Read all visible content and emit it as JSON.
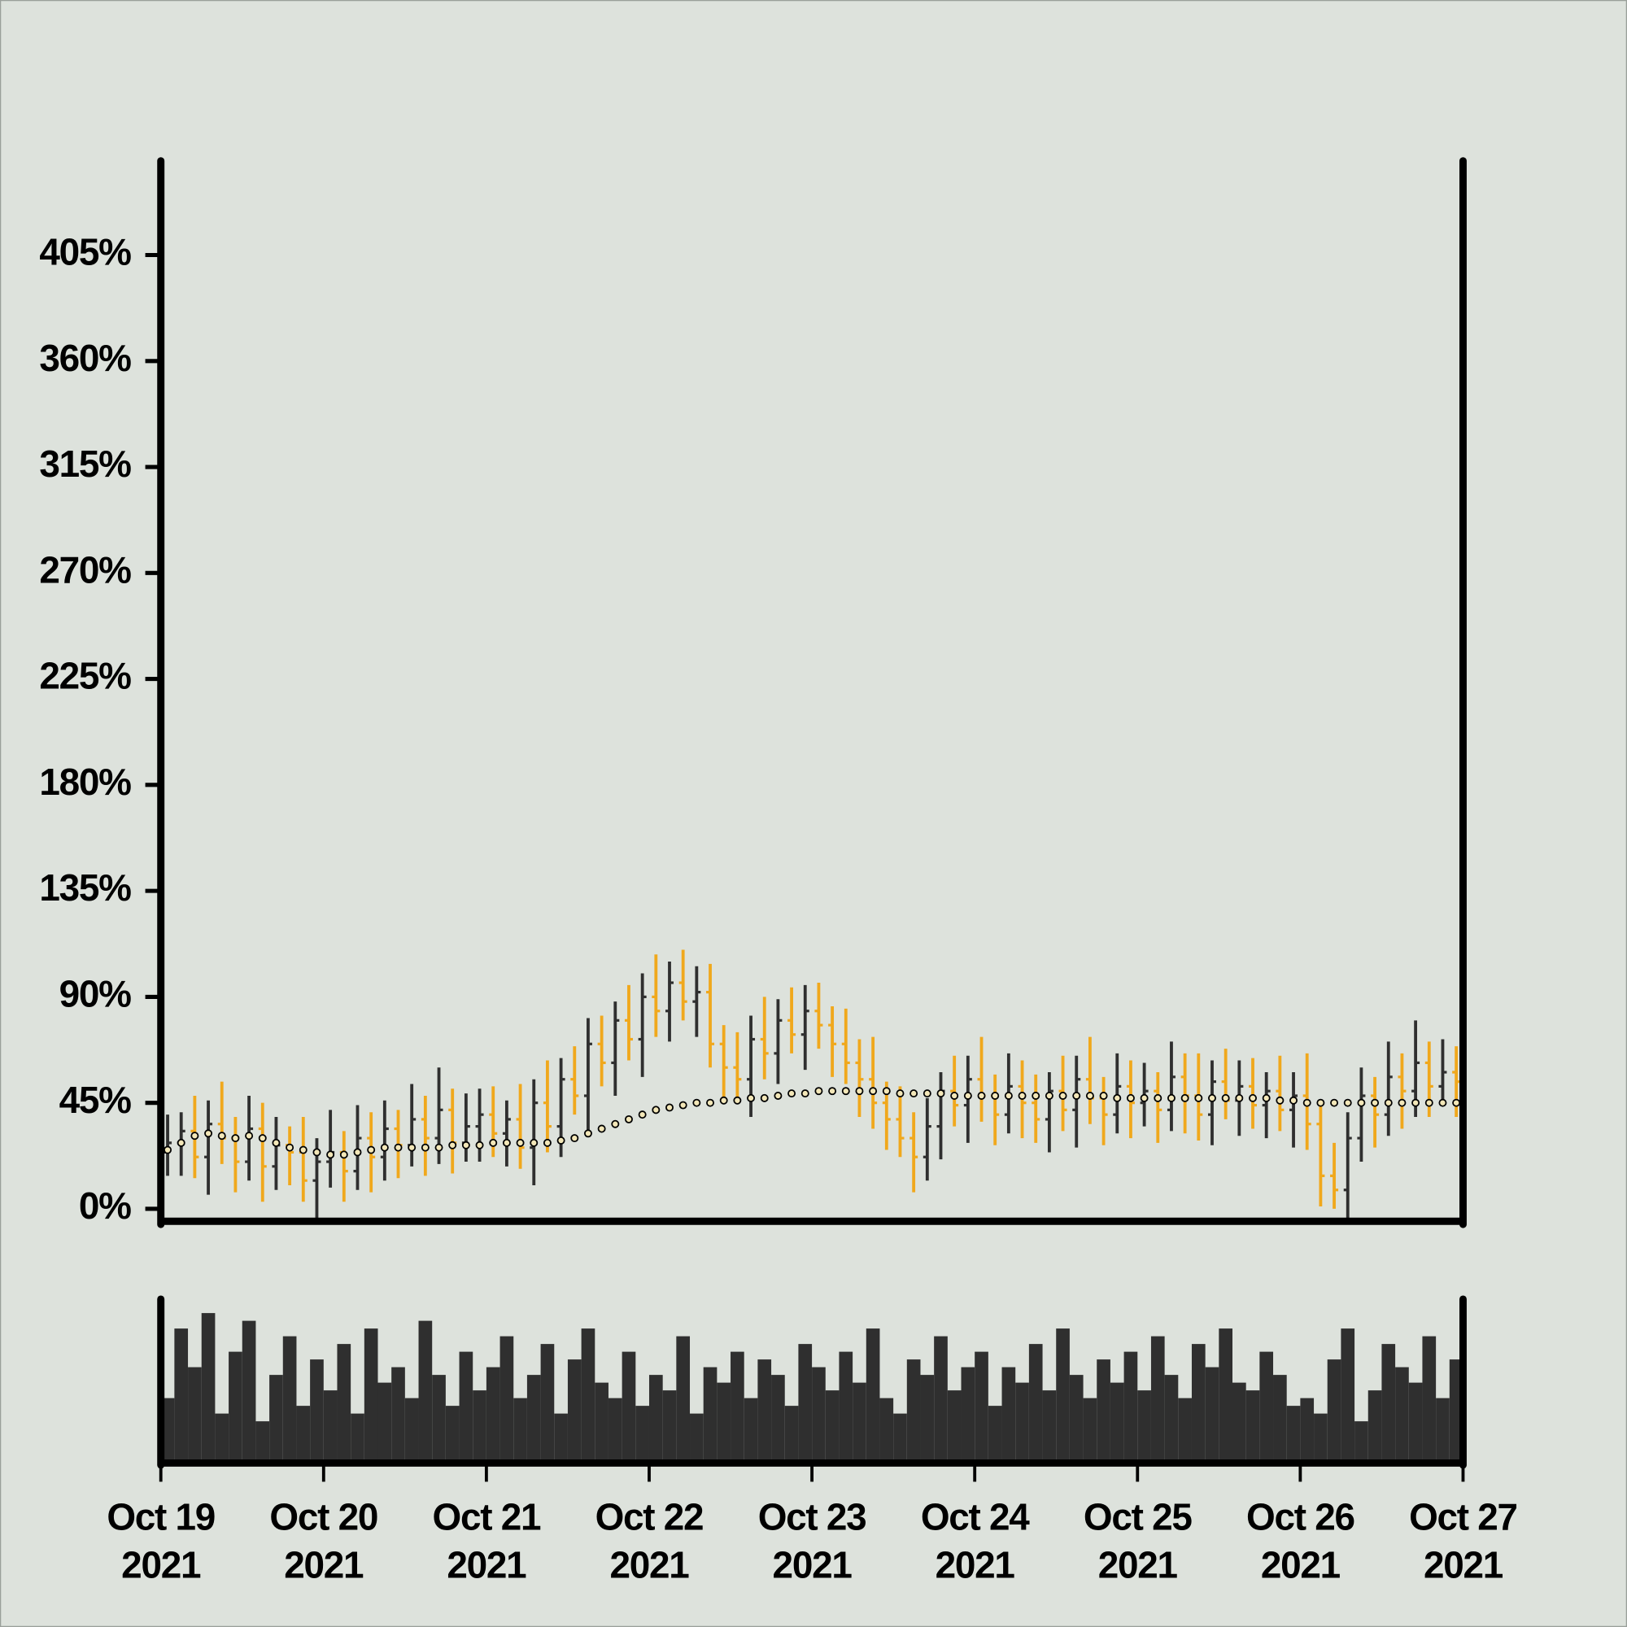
{
  "chart_data": {
    "type": "ohlc",
    "x": [
      1,
      3,
      5,
      7,
      9,
      11,
      13,
      15,
      17,
      19,
      21,
      23,
      25,
      27,
      29,
      31,
      33,
      35,
      37,
      39,
      41,
      43,
      45,
      47,
      49,
      51,
      53,
      55,
      57,
      59,
      61,
      63,
      65,
      67,
      69,
      71,
      73,
      75,
      77,
      79,
      81,
      83,
      85,
      87,
      89,
      91,
      93,
      95,
      97,
      99,
      101,
      103,
      105,
      107,
      109,
      111,
      113,
      115,
      117,
      119,
      121,
      123,
      125,
      127,
      129,
      131,
      133,
      135,
      137,
      139,
      141,
      143,
      145,
      147,
      149,
      151,
      153,
      155,
      157,
      159,
      161,
      163,
      165,
      167,
      169,
      171,
      173,
      175,
      177,
      179,
      181,
      183,
      185,
      187,
      189,
      191
    ],
    "open": [
      24,
      28,
      33,
      22,
      36,
      30,
      20,
      34,
      18,
      27,
      24,
      12,
      20,
      24,
      16,
      30,
      22,
      34,
      27,
      38,
      30,
      42,
      28,
      35,
      40,
      32,
      38,
      26,
      45,
      35,
      55,
      48,
      70,
      62,
      80,
      72,
      90,
      84,
      96,
      88,
      92,
      70,
      60,
      55,
      72,
      66,
      80,
      74,
      84,
      78,
      70,
      62,
      55,
      45,
      38,
      30,
      22,
      35,
      50,
      44,
      55,
      48,
      40,
      52,
      45,
      38,
      50,
      42,
      55,
      47,
      40,
      52,
      45,
      50,
      42,
      56,
      48,
      40,
      54,
      46,
      52,
      44,
      50,
      42,
      48,
      36,
      14,
      8,
      30,
      48,
      40,
      56,
      50,
      62,
      52,
      58
    ],
    "high": [
      40,
      41,
      48,
      46,
      54,
      39,
      48,
      45,
      39,
      35,
      39,
      30,
      42,
      33,
      44,
      41,
      46,
      42,
      53,
      48,
      60,
      51,
      49,
      51,
      52,
      46,
      53,
      55,
      63,
      64,
      69,
      81,
      82,
      88,
      95,
      100,
      108,
      105,
      110,
      103,
      104,
      78,
      75,
      82,
      90,
      89,
      94,
      95,
      96,
      86,
      85,
      72,
      73,
      54,
      52,
      41,
      47,
      58,
      65,
      65,
      73,
      57,
      66,
      63,
      57,
      58,
      65,
      65,
      73,
      56,
      66,
      63,
      62,
      58,
      71,
      66,
      66,
      63,
      68,
      63,
      64,
      58,
      65,
      58,
      66,
      45,
      28,
      41,
      60,
      56,
      71,
      66,
      80,
      71,
      72,
      69
    ],
    "low": [
      14,
      14,
      13,
      6,
      19,
      7,
      12,
      3,
      8,
      10,
      3,
      -4,
      9,
      3,
      8,
      7,
      12,
      13,
      18,
      14,
      19,
      15,
      20,
      20,
      22,
      18,
      17,
      10,
      24,
      22,
      40,
      33,
      52,
      48,
      63,
      56,
      73,
      71,
      80,
      73,
      60,
      46,
      46,
      39,
      55,
      53,
      66,
      59,
      68,
      56,
      53,
      39,
      34,
      25,
      22,
      7,
      12,
      21,
      35,
      28,
      37,
      27,
      32,
      30,
      28,
      24,
      33,
      26,
      36,
      27,
      32,
      30,
      35,
      28,
      33,
      32,
      29,
      27,
      38,
      31,
      34,
      30,
      33,
      26,
      25,
      1,
      0,
      -4,
      20,
      26,
      31,
      34,
      39,
      39,
      44,
      39
    ],
    "close": [
      28,
      33,
      22,
      36,
      30,
      20,
      34,
      18,
      27,
      24,
      12,
      20,
      24,
      16,
      30,
      22,
      34,
      27,
      38,
      30,
      42,
      28,
      35,
      40,
      32,
      38,
      26,
      45,
      35,
      55,
      48,
      70,
      62,
      80,
      72,
      90,
      84,
      96,
      88,
      92,
      70,
      60,
      55,
      72,
      66,
      80,
      74,
      84,
      78,
      70,
      62,
      55,
      45,
      38,
      30,
      22,
      35,
      50,
      44,
      55,
      48,
      40,
      52,
      45,
      38,
      50,
      42,
      55,
      47,
      40,
      52,
      45,
      50,
      42,
      56,
      48,
      40,
      54,
      46,
      52,
      44,
      50,
      42,
      48,
      36,
      14,
      8,
      30,
      48,
      40,
      56,
      50,
      62,
      52,
      58,
      54
    ],
    "up_color": "#2f2f2f",
    "down_color": "#f0a81c",
    "moving_average": {
      "color": "#f3e7b8",
      "values": [
        25,
        28,
        31,
        32,
        31,
        30,
        31,
        30,
        28,
        26,
        25,
        24,
        23,
        23,
        24,
        25,
        26,
        26,
        26,
        26,
        26,
        27,
        27,
        27,
        28,
        28,
        28,
        28,
        28,
        29,
        30,
        32,
        34,
        36,
        38,
        40,
        42,
        43,
        44,
        45,
        45,
        46,
        46,
        47,
        47,
        48,
        49,
        49,
        50,
        50,
        50,
        50,
        50,
        50,
        49,
        49,
        49,
        49,
        48,
        48,
        48,
        48,
        48,
        48,
        48,
        48,
        48,
        48,
        48,
        48,
        47,
        47,
        47,
        47,
        47,
        47,
        47,
        47,
        47,
        47,
        47,
        47,
        46,
        46,
        45,
        45,
        45,
        45,
        45,
        45,
        45,
        45,
        45,
        45,
        45,
        45
      ]
    },
    "volume": {
      "color": "#2f2f2f",
      "ylim": [
        0,
        100
      ],
      "values": [
        40,
        85,
        60,
        95,
        30,
        70,
        90,
        25,
        55,
        80,
        35,
        65,
        45,
        75,
        30,
        85,
        50,
        60,
        40,
        90,
        55,
        35,
        70,
        45,
        60,
        80,
        40,
        55,
        75,
        30,
        65,
        85,
        50,
        40,
        70,
        35,
        55,
        45,
        80,
        30,
        60,
        50,
        70,
        40,
        65,
        55,
        35,
        75,
        60,
        45,
        70,
        50,
        85,
        40,
        30,
        65,
        55,
        80,
        45,
        60,
        70,
        35,
        60,
        50,
        75,
        45,
        85,
        55,
        40,
        65,
        50,
        70,
        45,
        80,
        55,
        40,
        75,
        60,
        85,
        50,
        45,
        70,
        55,
        35,
        40,
        30,
        65,
        85,
        25,
        45,
        75,
        60,
        50,
        80,
        40,
        65
      ]
    },
    "xlim": [
      0,
      192
    ],
    "xticks": [
      {
        "value": 0,
        "label": [
          "Oct 19",
          "2021"
        ]
      },
      {
        "value": 24,
        "label": [
          "Oct 20",
          "2021"
        ]
      },
      {
        "value": 48,
        "label": [
          "Oct 21",
          "2021"
        ]
      },
      {
        "value": 72,
        "label": [
          "Oct 22",
          "2021"
        ]
      },
      {
        "value": 96,
        "label": [
          "Oct 23",
          "2021"
        ]
      },
      {
        "value": 120,
        "label": [
          "Oct 24",
          "2021"
        ]
      },
      {
        "value": 144,
        "label": [
          "Oct 25",
          "2021"
        ]
      },
      {
        "value": 168,
        "label": [
          "Oct 26",
          "2021"
        ]
      },
      {
        "value": 192,
        "label": [
          "Oct 27",
          "2021"
        ]
      }
    ],
    "ylim": [
      -5.3,
      445
    ],
    "yticks": [
      {
        "value": 0,
        "label": "0%"
      },
      {
        "value": 45,
        "label": "45%"
      },
      {
        "value": 90,
        "label": "90%"
      },
      {
        "value": 135,
        "label": "135%"
      },
      {
        "value": 180,
        "label": "180%"
      },
      {
        "value": 225,
        "label": "225%"
      },
      {
        "value": 270,
        "label": "270%"
      },
      {
        "value": 315,
        "label": "315%"
      },
      {
        "value": 360,
        "label": "360%"
      },
      {
        "value": 405,
        "label": "405%"
      }
    ]
  }
}
